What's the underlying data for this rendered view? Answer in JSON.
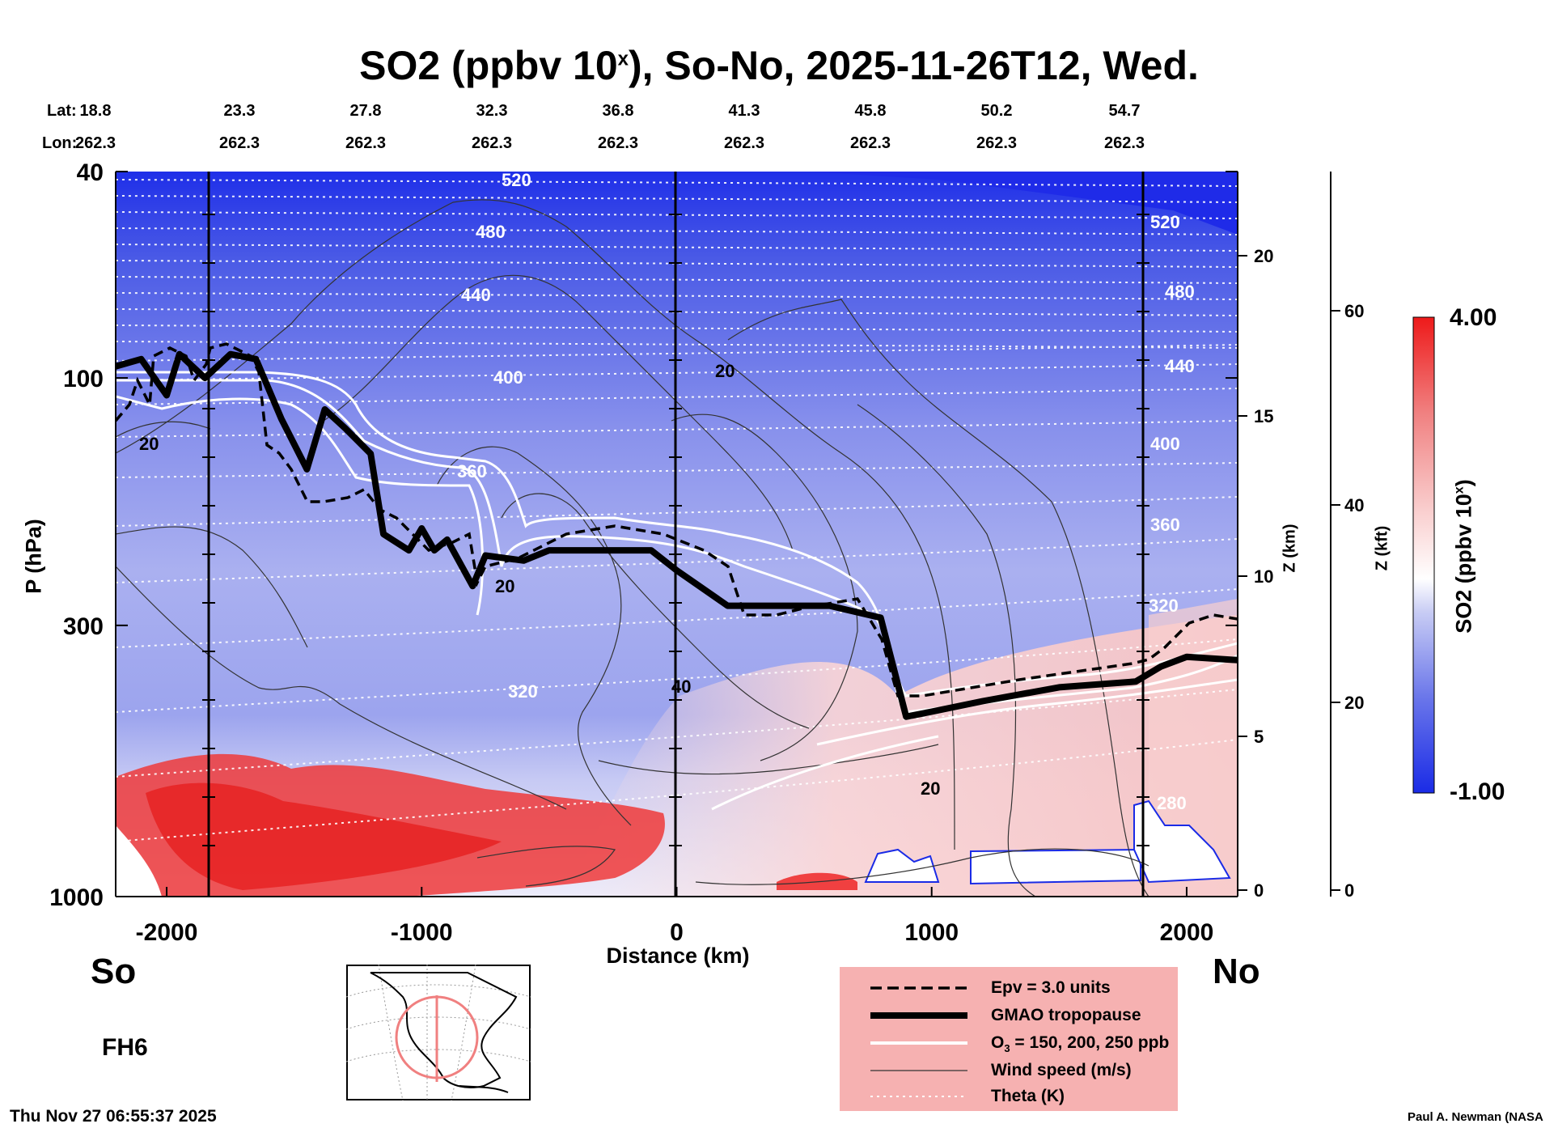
{
  "header": {
    "title": "SO2 (ppbv 10",
    "title_sup": "x",
    "title_rest": "), So-No, 2025-11-26T12, Wed."
  },
  "coords": {
    "lat_label": "Lat:",
    "lon_label": "Lon:",
    "lat": [
      "18.8",
      "23.3",
      "27.8",
      "32.3",
      "36.8",
      "41.3",
      "45.8",
      "50.2",
      "54.7"
    ],
    "lon": [
      "262.3",
      "262.3",
      "262.3",
      "262.3",
      "262.3",
      "262.3",
      "262.3",
      "262.3",
      "262.3"
    ]
  },
  "chart_data": {
    "type": "heatmap",
    "title": "SO2 (ppbv 10^x), So-No, 2025-11-26T12, Wed.",
    "xlabel": "Distance (km)",
    "ylabel": "P (hPa)",
    "y2label": "Z (km)",
    "y3label": "Z (kft)",
    "xlim": [
      -2200,
      2200
    ],
    "ylim": [
      1000,
      40
    ],
    "x_ticks": [
      "-2000",
      "-1000",
      "0",
      "1000",
      "2000"
    ],
    "y_ticks": [
      "40",
      "100",
      "300",
      "1000"
    ],
    "z_km_ticks": [
      "0",
      "5",
      "10",
      "15",
      "20"
    ],
    "z_kft_ticks": [
      "0",
      "20",
      "40",
      "60"
    ],
    "colorbar": {
      "label": "SO2 (ppbv 10",
      "label_sup": "x",
      "label_end": ")",
      "min": "-1.00",
      "max": "4.00"
    },
    "theta_labels": [
      "520",
      "480",
      "440",
      "400",
      "360",
      "320",
      "520",
      "480",
      "440",
      "400",
      "360",
      "320",
      "280"
    ],
    "wind_labels": [
      "20",
      "20",
      "20",
      "40",
      "20"
    ],
    "tropopause_km": [
      {
        "x": -2200,
        "p": 95
      },
      {
        "x": -2100,
        "p": 92
      },
      {
        "x": -2000,
        "p": 108
      },
      {
        "x": -1950,
        "p": 90
      },
      {
        "x": -1850,
        "p": 100
      },
      {
        "x": -1750,
        "p": 90
      },
      {
        "x": -1650,
        "p": 92
      },
      {
        "x": -1550,
        "p": 120
      },
      {
        "x": -1450,
        "p": 150
      },
      {
        "x": -1380,
        "p": 115
      },
      {
        "x": -1300,
        "p": 125
      },
      {
        "x": -1200,
        "p": 140
      },
      {
        "x": -1150,
        "p": 200
      },
      {
        "x": -1050,
        "p": 215
      },
      {
        "x": -1000,
        "p": 195
      },
      {
        "x": -950,
        "p": 215
      },
      {
        "x": -900,
        "p": 205
      },
      {
        "x": -800,
        "p": 252
      },
      {
        "x": -750,
        "p": 220
      },
      {
        "x": -600,
        "p": 225
      },
      {
        "x": -500,
        "p": 215
      },
      {
        "x": -300,
        "p": 215
      },
      {
        "x": -100,
        "p": 215
      },
      {
        "x": 0,
        "p": 235
      },
      {
        "x": 200,
        "p": 275
      },
      {
        "x": 600,
        "p": 275
      },
      {
        "x": 800,
        "p": 290
      },
      {
        "x": 900,
        "p": 450
      },
      {
        "x": 1000,
        "p": 440
      },
      {
        "x": 1200,
        "p": 420
      },
      {
        "x": 1500,
        "p": 395
      },
      {
        "x": 1800,
        "p": 385
      },
      {
        "x": 1900,
        "p": 360
      },
      {
        "x": 2000,
        "p": 345
      },
      {
        "x": 2200,
        "p": 350
      }
    ],
    "legend": [
      {
        "label": "Epv = 3.0 units",
        "style": "dashed"
      },
      {
        "label": "GMAO tropopause",
        "style": "thick"
      },
      {
        "label": "O3 = 150, 200, 250 ppb",
        "style": "white"
      },
      {
        "label": "Wind speed (m/s)",
        "style": "thin"
      },
      {
        "label": "Theta (K)",
        "style": "dotted"
      }
    ]
  },
  "labels": {
    "south": "So",
    "north": "No",
    "forecast": "FH6",
    "timestamp": "Thu Nov 27 06:55:37 2025",
    "author": "Paul A. Newman (NASA",
    "zkm": "Z (km)",
    "zkft": "Z (kft)",
    "o3_prefix": "O",
    "o3_sub": "3",
    "o3_rest": " = 150, 200, 250 ppb"
  },
  "colors": {
    "low": "#1a2be6",
    "mid": "#ffffff",
    "high": "#ee1a1a",
    "legend_bg": "#f6b1b1"
  }
}
